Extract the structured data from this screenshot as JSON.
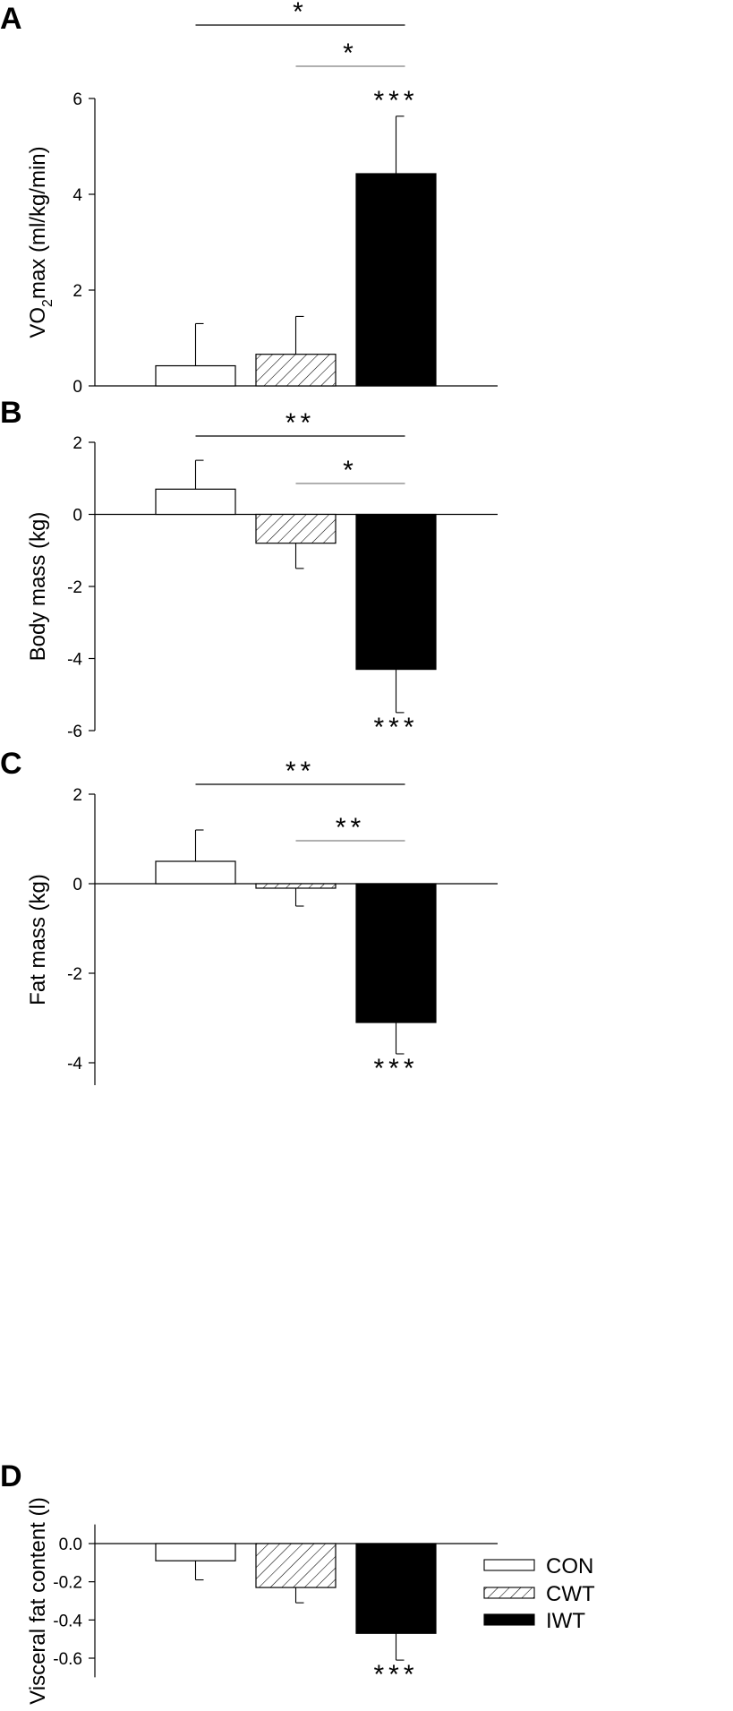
{
  "legend": {
    "entries": [
      {
        "name": "CON",
        "pattern": "open"
      },
      {
        "name": "CWT",
        "pattern": "hatched"
      },
      {
        "name": "IWT",
        "pattern": "solid"
      }
    ],
    "placement": "right"
  },
  "colors": {
    "ink": "#000000",
    "bar_open": "#ffffff",
    "bar_solid": "#000000",
    "comparison_line_light": "#808080"
  },
  "chart_data": [
    {
      "type": "bar",
      "panel": "A",
      "ylabel_main": "VO",
      "ylabel_sub": "2",
      "ylabel_rest": "max (ml/kg/min)",
      "ylim": [
        0,
        6
      ],
      "yticks": [
        0,
        2,
        4,
        6
      ],
      "ytick_labels": [
        "0",
        "2",
        "4",
        "6"
      ],
      "categories": [
        "CON",
        "CWT",
        "IWT"
      ],
      "values": [
        0.42,
        0.66,
        4.43
      ],
      "errors": [
        0.88,
        0.79,
        1.2
      ],
      "bar_sig": [
        "",
        "",
        "***"
      ],
      "comparisons": [
        {
          "from": "CON",
          "to": "IWT",
          "label": "*",
          "shade": "dark"
        },
        {
          "from": "CWT",
          "to": "IWT",
          "label": "*",
          "shade": "light"
        }
      ]
    },
    {
      "type": "bar",
      "panel": "B",
      "ylabel_main": "Body mass (kg)",
      "ylim": [
        -6,
        2
      ],
      "yticks": [
        -6,
        -4,
        -2,
        0,
        2
      ],
      "ytick_labels": [
        "-6",
        "-4",
        "-2",
        "0",
        "2"
      ],
      "categories": [
        "CON",
        "CWT",
        "IWT"
      ],
      "values": [
        0.7,
        -0.8,
        -4.3
      ],
      "errors": [
        0.8,
        0.7,
        1.2
      ],
      "bar_sig": [
        "",
        "",
        "***"
      ],
      "comparisons": [
        {
          "from": "CON",
          "to": "IWT",
          "label": "**",
          "shade": "dark"
        },
        {
          "from": "CWT",
          "to": "IWT",
          "label": "*",
          "shade": "light"
        }
      ]
    },
    {
      "type": "bar",
      "panel": "C",
      "ylabel_main": "Fat mass (kg)",
      "ylim": [
        -4.5,
        2
      ],
      "yticks": [
        -4,
        -2,
        0,
        2
      ],
      "ytick_labels": [
        "-4",
        "-2",
        "0",
        "2"
      ],
      "categories": [
        "CON",
        "CWT",
        "IWT"
      ],
      "values": [
        0.5,
        -0.1,
        -3.1
      ],
      "errors": [
        0.7,
        0.4,
        0.7
      ],
      "bar_sig": [
        "",
        "",
        "***"
      ],
      "comparisons": [
        {
          "from": "CON",
          "to": "IWT",
          "label": "**",
          "shade": "dark"
        },
        {
          "from": "CWT",
          "to": "IWT",
          "label": "**",
          "shade": "light"
        }
      ]
    },
    {
      "type": "bar",
      "panel": "D",
      "ylabel_main": "Visceral fat content (l)",
      "ylim": [
        -0.7,
        0.1
      ],
      "yticks": [
        -0.6,
        -0.4,
        -0.2,
        0.0
      ],
      "ytick_labels": [
        "-0.6",
        "-0.4",
        "-0.2",
        "0.0"
      ],
      "categories": [
        "CON",
        "CWT",
        "IWT"
      ],
      "values": [
        -0.09,
        -0.23,
        -0.47
      ],
      "errors": [
        0.1,
        0.08,
        0.14
      ],
      "bar_sig": [
        "",
        "",
        "***"
      ],
      "comparisons": []
    }
  ]
}
